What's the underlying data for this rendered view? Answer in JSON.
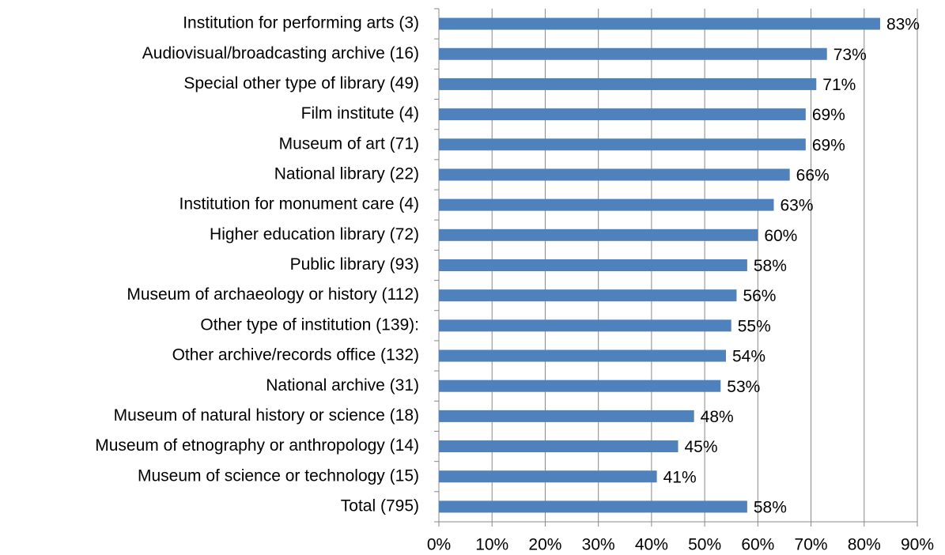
{
  "chart_data": {
    "type": "bar",
    "orientation": "horizontal",
    "categories": [
      "Institution for performing arts (3)",
      "Audiovisual/broadcasting archive (16)",
      "Special other type of library (49)",
      "Film institute (4)",
      "Museum of art (71)",
      "National library (22)",
      "Institution for monument care (4)",
      "Higher education library (72)",
      "Public library (93)",
      "Museum of archaeology or history (112)",
      "Other type of institution (139):",
      "Other archive/records office (132)",
      "National archive (31)",
      "Museum of natural history or science (18)",
      "Museum of etnography or anthropology (14)",
      "Museum of science or technology (15)",
      "Total (795)"
    ],
    "values": [
      83,
      73,
      71,
      69,
      69,
      66,
      63,
      60,
      58,
      56,
      55,
      54,
      53,
      48,
      45,
      41,
      58
    ],
    "value_labels": [
      "83%",
      "73%",
      "71%",
      "69%",
      "69%",
      "66%",
      "63%",
      "60%",
      "58%",
      "56%",
      "55%",
      "54%",
      "53%",
      "48%",
      "45%",
      "41%",
      "58%"
    ],
    "color": "#4f81bd",
    "xlim": [
      0,
      90
    ],
    "xticks": [
      {
        "value": 0,
        "label": "0%"
      },
      {
        "value": 10,
        "label": "10%"
      },
      {
        "value": 20,
        "label": "20%"
      },
      {
        "value": 30,
        "label": "30%"
      },
      {
        "value": 40,
        "label": "40%"
      },
      {
        "value": 50,
        "label": "50%"
      },
      {
        "value": 60,
        "label": "60%"
      },
      {
        "value": 70,
        "label": "70%"
      },
      {
        "value": 80,
        "label": "80%"
      },
      {
        "value": 90,
        "label": "90%"
      }
    ],
    "grid": true
  }
}
